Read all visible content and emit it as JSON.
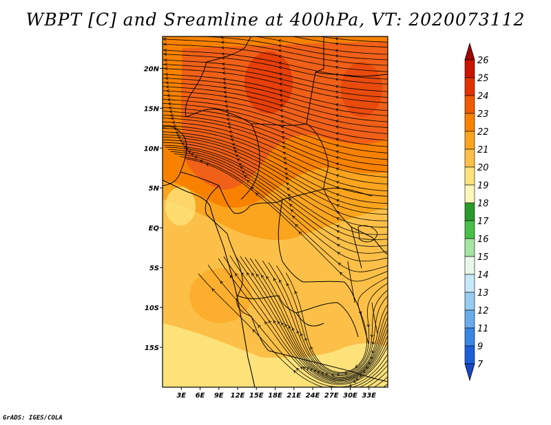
{
  "title": "WBPT [C] and Sreamline at 400hPa, VT: 2020073112",
  "credit": "GrADS: IGES/COLA",
  "map": {
    "lon_range": [
      0,
      36
    ],
    "lat_range": [
      -20,
      24
    ],
    "x_ticks": [
      "3E",
      "6E",
      "9E",
      "12E",
      "15E",
      "18E",
      "21E",
      "24E",
      "27E",
      "30E",
      "33E"
    ],
    "y_ticks": [
      "20N",
      "15N",
      "10N",
      "5N",
      "EQ",
      "5S",
      "10S",
      "15S"
    ]
  },
  "colorbar": {
    "labels": [
      "26",
      "25",
      "24",
      "23",
      "22",
      "21",
      "20",
      "19",
      "18",
      "17",
      "16",
      "15",
      "14",
      "13",
      "12",
      "11",
      "9",
      "7"
    ],
    "colors": [
      "#a50000",
      "#c81400",
      "#e13200",
      "#f05a00",
      "#f88200",
      "#fba41e",
      "#fcc048",
      "#fde27a",
      "#fef6b8",
      "#2a9a2a",
      "#48c048",
      "#a4e4a4",
      "#e8f8e8",
      "#c8e8f8",
      "#98cbf0",
      "#68acec",
      "#3a86e6",
      "#1e5fd8",
      "#1848c8"
    ],
    "top_arrow_color": "#a50000",
    "bottom_arrow_color": "#1848c8"
  }
}
